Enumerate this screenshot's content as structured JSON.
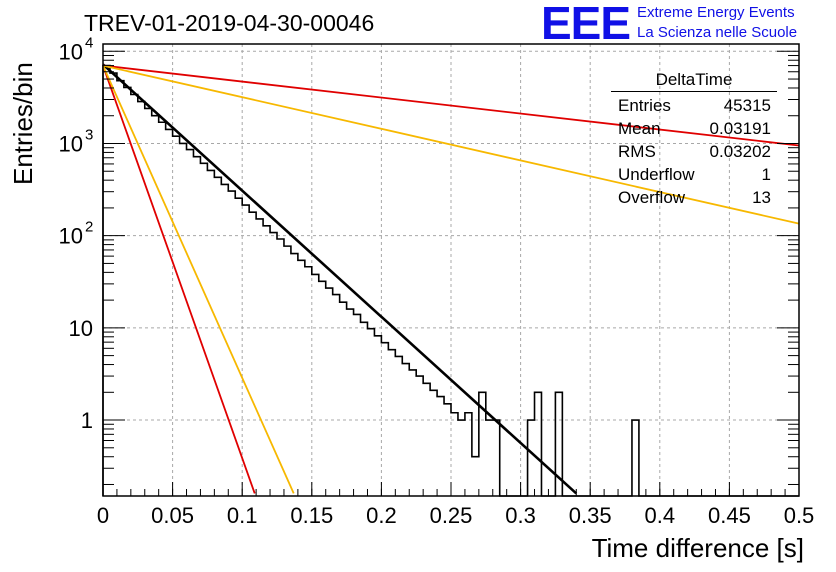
{
  "header": {
    "title": "TREV-01-2019-04-30-00046",
    "logo_text": "EEE",
    "logo_line1": "Extreme Energy Events",
    "logo_line2": "La Scienza nelle Scuole"
  },
  "stats_box": {
    "title": "DeltaTime",
    "rows": [
      {
        "label": "Entries",
        "value": "45315"
      },
      {
        "label": "Mean",
        "value": "0.03191"
      },
      {
        "label": "RMS",
        "value": "0.03202"
      },
      {
        "label": "Underflow",
        "value": "1"
      },
      {
        "label": "Overflow",
        "value": "13"
      }
    ]
  },
  "chart_data": {
    "type": "histogram",
    "title": "TREV-01-2019-04-30-00046",
    "xlabel": "Time difference [s]",
    "ylabel": "Entries/bin",
    "xlim": [
      0,
      0.5
    ],
    "ylim": [
      0.15,
      12000
    ],
    "y_scale": "log",
    "grid": true,
    "x_ticks": [
      "0",
      "0.05",
      "0.1",
      "0.15",
      "0.2",
      "0.25",
      "0.3",
      "0.35",
      "0.4",
      "0.45",
      "0.5"
    ],
    "y_ticks": [
      {
        "value": 1,
        "label": "1"
      },
      {
        "value": 10,
        "label": "10"
      },
      {
        "value": 100,
        "label": "10",
        "exp": "2"
      },
      {
        "value": 1000,
        "label": "10",
        "exp": "3"
      },
      {
        "value": 10000,
        "label": "10",
        "exp": "4"
      }
    ],
    "histogram": {
      "bin_width": 0.005,
      "bin_start": 0,
      "counts": [
        7000,
        5800,
        4800,
        4050,
        3400,
        2850,
        2400,
        2000,
        1700,
        1420,
        1200,
        1000,
        860,
        720,
        610,
        510,
        430,
        360,
        305,
        255,
        215,
        180,
        152,
        128,
        108,
        92,
        77,
        64,
        54,
        46,
        38,
        32,
        27,
        23,
        19,
        16,
        14,
        11.5,
        9.8,
        8.2,
        6.9,
        5.8,
        4.9,
        4.1,
        3.5,
        3.0,
        2.5,
        2.1,
        1.8,
        1.5,
        1.2,
        1.0,
        1.2,
        0.4,
        2,
        1,
        1,
        0,
        0,
        0,
        0,
        1,
        2,
        0,
        0,
        2,
        0,
        0,
        0,
        0,
        0,
        0,
        0,
        0,
        0,
        0,
        1,
        0,
        0,
        0
      ],
      "color": "#000000"
    },
    "series": [
      {
        "type": "fit",
        "color": "#000000",
        "points": [
          [
            0,
            7200
          ],
          [
            0.34,
            0.16
          ]
        ]
      },
      {
        "type": "line",
        "color": "#e00000",
        "points": [
          [
            0,
            7000
          ],
          [
            0.5,
            950
          ]
        ]
      },
      {
        "type": "line",
        "color": "#f7b800",
        "points": [
          [
            0,
            7000
          ],
          [
            0.5,
            135
          ]
        ]
      },
      {
        "type": "line",
        "color": "#e00000",
        "points": [
          [
            0,
            7000
          ],
          [
            0.109,
            0.16
          ]
        ]
      },
      {
        "type": "line",
        "color": "#f7b800",
        "points": [
          [
            0,
            7000
          ],
          [
            0.137,
            0.16
          ]
        ]
      }
    ]
  }
}
